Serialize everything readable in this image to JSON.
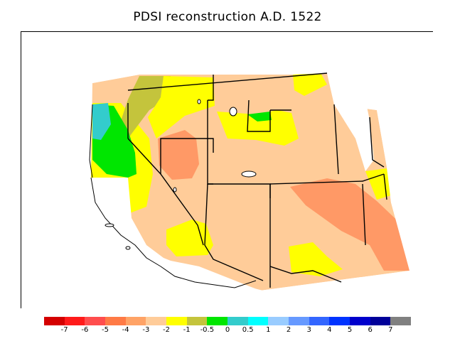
{
  "title": "PDSI reconstruction A.D. 1522",
  "legend": {
    "colors": [
      "#d40000",
      "#ff1a1a",
      "#ff4d4d",
      "#ff7a45",
      "#ffa366",
      "#ffcc99",
      "#ffff00",
      "#c4c43c",
      "#00e600",
      "#33cccc",
      "#00ffff",
      "#99ccff",
      "#6699ff",
      "#3366ff",
      "#0033ff",
      "#0000cc",
      "#000099",
      "#808080"
    ],
    "labels": [
      "-7",
      "-6",
      "-5",
      "-4",
      "-3",
      "-2",
      "-1",
      "-0.5",
      "0",
      "0.5",
      "1",
      "2",
      "3",
      "4",
      "5",
      "6",
      "7"
    ]
  },
  "map_colors": {
    "ocean": "#ffffff",
    "dry_mild": "#ffcc99",
    "dry_moderate": "#ff9966",
    "near_normal": "#ffff00",
    "slightly_wet": "#c4c43c",
    "wet": "#00e600",
    "wetter": "#33cccc"
  }
}
